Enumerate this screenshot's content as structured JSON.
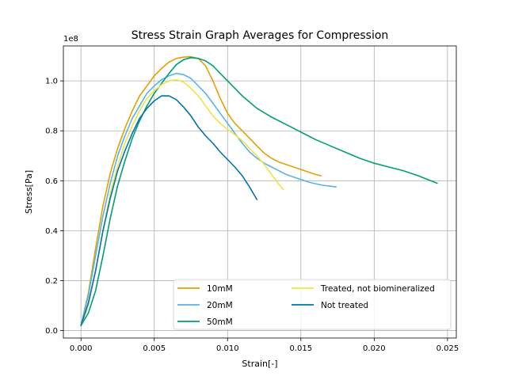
{
  "chart_data": {
    "type": "line",
    "title": "Stress Strain Graph Averages for Compression",
    "xlabel": "Strain[-]",
    "ylabel": "Stress[Pa]",
    "y_offset_text": "1e8",
    "xlim": [
      -0.0012,
      0.0256
    ],
    "ylim": [
      -0.03,
      1.14
    ],
    "y_scale_factor": 100000000,
    "xticks": [
      0.0,
      0.005,
      0.01,
      0.015,
      0.02,
      0.025
    ],
    "xtick_labels": [
      "0.000",
      "0.005",
      "0.010",
      "0.015",
      "0.020",
      "0.025"
    ],
    "yticks": [
      0.0,
      0.2,
      0.4,
      0.6,
      0.8,
      1.0
    ],
    "ytick_labels": [
      "0.0",
      "0.2",
      "0.4",
      "0.6",
      "0.8",
      "1.0"
    ],
    "grid": true,
    "legend_placement": "lower-right",
    "legend_columns": 2,
    "series": [
      {
        "name": "10mM",
        "color": "#E69F00",
        "x": [
          0,
          0.0005,
          0.001,
          0.0015,
          0.002,
          0.0025,
          0.003,
          0.0035,
          0.004,
          0.0045,
          0.005,
          0.0055,
          0.006,
          0.0065,
          0.007,
          0.0075,
          0.008,
          0.0085,
          0.009,
          0.0095,
          0.01,
          0.0105,
          0.011,
          0.0115,
          0.012,
          0.0125,
          0.013,
          0.0135,
          0.014,
          0.0145,
          0.015,
          0.0155,
          0.016,
          0.0164
        ],
        "y": [
          0.02,
          0.15,
          0.33,
          0.5,
          0.63,
          0.73,
          0.81,
          0.88,
          0.94,
          0.98,
          1.02,
          1.05,
          1.075,
          1.09,
          1.095,
          1.097,
          1.09,
          1.06,
          1.0,
          0.93,
          0.87,
          0.83,
          0.8,
          0.77,
          0.74,
          0.71,
          0.69,
          0.675,
          0.665,
          0.655,
          0.645,
          0.635,
          0.625,
          0.62
        ]
      },
      {
        "name": "20mM",
        "color": "#56B4E9",
        "x": [
          0,
          0.0005,
          0.001,
          0.0015,
          0.002,
          0.0025,
          0.003,
          0.0035,
          0.004,
          0.0045,
          0.005,
          0.0055,
          0.006,
          0.0065,
          0.007,
          0.0075,
          0.008,
          0.0085,
          0.009,
          0.0095,
          0.01,
          0.0105,
          0.011,
          0.0115,
          0.012,
          0.0125,
          0.013,
          0.0135,
          0.014,
          0.0145,
          0.015,
          0.0155,
          0.016,
          0.0165,
          0.017,
          0.0174
        ],
        "y": [
          0.02,
          0.14,
          0.3,
          0.46,
          0.59,
          0.7,
          0.78,
          0.85,
          0.9,
          0.95,
          0.98,
          1.005,
          1.02,
          1.03,
          1.025,
          1.01,
          0.98,
          0.95,
          0.91,
          0.87,
          0.83,
          0.79,
          0.75,
          0.715,
          0.69,
          0.67,
          0.655,
          0.64,
          0.625,
          0.615,
          0.605,
          0.595,
          0.588,
          0.582,
          0.578,
          0.575
        ]
      },
      {
        "name": "50mM",
        "color": "#009E73",
        "x": [
          0,
          0.0005,
          0.001,
          0.0015,
          0.002,
          0.0025,
          0.003,
          0.0035,
          0.004,
          0.0045,
          0.005,
          0.0055,
          0.006,
          0.0065,
          0.007,
          0.0075,
          0.008,
          0.0085,
          0.009,
          0.0095,
          0.01,
          0.011,
          0.012,
          0.013,
          0.014,
          0.015,
          0.016,
          0.017,
          0.018,
          0.019,
          0.02,
          0.021,
          0.022,
          0.023,
          0.0243
        ],
        "y": [
          0.02,
          0.07,
          0.16,
          0.3,
          0.45,
          0.58,
          0.68,
          0.77,
          0.84,
          0.9,
          0.95,
          0.99,
          1.03,
          1.065,
          1.085,
          1.093,
          1.09,
          1.08,
          1.06,
          1.03,
          1.0,
          0.94,
          0.89,
          0.855,
          0.825,
          0.795,
          0.765,
          0.74,
          0.715,
          0.69,
          0.67,
          0.655,
          0.64,
          0.62,
          0.59
        ]
      },
      {
        "name": "Treated, not biomineralized",
        "color": "#F0E442",
        "x": [
          0,
          0.0005,
          0.001,
          0.0015,
          0.002,
          0.0025,
          0.003,
          0.0035,
          0.004,
          0.0045,
          0.005,
          0.0055,
          0.006,
          0.0065,
          0.007,
          0.0075,
          0.008,
          0.0085,
          0.009,
          0.0095,
          0.01,
          0.0105,
          0.011,
          0.0115,
          0.012,
          0.0125,
          0.013,
          0.0135,
          0.0138
        ],
        "y": [
          0.02,
          0.1,
          0.24,
          0.4,
          0.55,
          0.66,
          0.75,
          0.82,
          0.88,
          0.93,
          0.96,
          0.985,
          1.0,
          1.005,
          0.995,
          0.97,
          0.94,
          0.9,
          0.86,
          0.83,
          0.805,
          0.785,
          0.76,
          0.73,
          0.7,
          0.665,
          0.625,
          0.585,
          0.565
        ]
      },
      {
        "name": "Not treated",
        "color": "#0072B2",
        "x": [
          0,
          0.0005,
          0.001,
          0.0015,
          0.002,
          0.0025,
          0.003,
          0.0035,
          0.004,
          0.0045,
          0.005,
          0.0055,
          0.006,
          0.0065,
          0.007,
          0.0075,
          0.008,
          0.0085,
          0.009,
          0.0095,
          0.01,
          0.0105,
          0.011,
          0.0115,
          0.012
        ],
        "y": [
          0.02,
          0.11,
          0.24,
          0.4,
          0.53,
          0.64,
          0.72,
          0.79,
          0.85,
          0.89,
          0.92,
          0.94,
          0.94,
          0.925,
          0.895,
          0.86,
          0.815,
          0.78,
          0.75,
          0.715,
          0.685,
          0.655,
          0.62,
          0.575,
          0.525
        ]
      }
    ]
  }
}
